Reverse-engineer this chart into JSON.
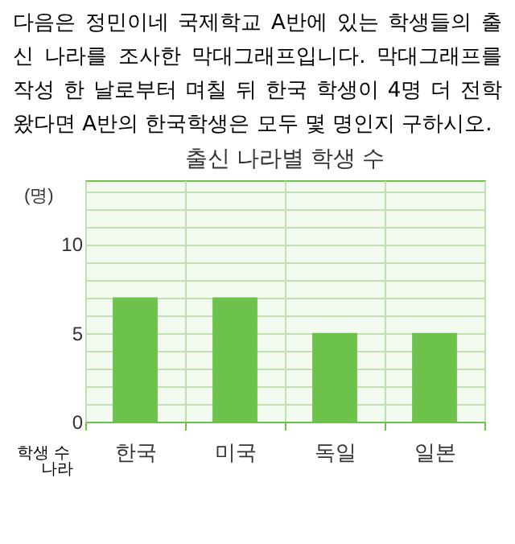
{
  "chart_data": {
    "type": "bar",
    "title": "출신 나라별 학생 수",
    "xlabel": "나라",
    "ylabel": "학생 수",
    "annotations": [
      "다음은 정민이네 국제학교 A반에 있는 학생들의 출신 나라를 조사한 막대그래프입니다. 막대그래프를 작성 한 날로부터 며칠 뒤 한국 학생이 4명 더 전학 왔다면 A반의 한국학생은 모두 몇 명인지 구하시오.",
      "(명)"
    ],
    "categories": [
      "한국",
      "미국",
      "독일",
      "일본"
    ],
    "values": [
      7,
      7,
      5,
      5
    ],
    "color": "#6cc24a",
    "ylim": [
      0,
      13.6
    ],
    "yticks": [
      0,
      {
        "value": 1,
        "label": null
      },
      {
        "value": 2,
        "label": null
      },
      {
        "value": 3,
        "label": null
      },
      {
        "value": 4,
        "label": null
      },
      5,
      {
        "value": 6,
        "label": null
      },
      {
        "value": 7,
        "label": null
      },
      {
        "value": 8,
        "label": null
      },
      {
        "value": 9,
        "label": null
      },
      10,
      {
        "value": 11,
        "label": null
      },
      {
        "value": 12,
        "label": null
      },
      {
        "value": 13,
        "label": null
      }
    ],
    "grid": true
  }
}
